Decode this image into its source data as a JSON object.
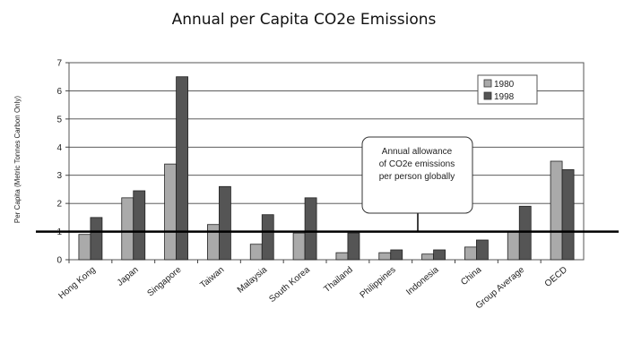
{
  "chart_data": {
    "type": "bar",
    "title": "Annual per Capita CO2e Emissions",
    "ylabel": "Per Capita (Metric Tonnes Carbon Only)",
    "xlabel": "",
    "ylim": [
      0,
      7
    ],
    "yticks": [
      "0",
      "1",
      "2",
      "3",
      "4",
      "5",
      "6",
      "7"
    ],
    "grid": true,
    "legend_position": "top-right",
    "categories": [
      "Hong Kong",
      "Japan",
      "Singapore",
      "Taiwan",
      "Malaysia",
      "South Korea",
      "Thailand",
      "Philippines",
      "Indonesia",
      "China",
      "Group Average",
      "OECD"
    ],
    "series": [
      {
        "name": "1980",
        "color": "#aaaaaa",
        "values": [
          0.9,
          2.2,
          3.4,
          1.25,
          0.55,
          0.95,
          0.25,
          0.25,
          0.2,
          0.45,
          1.0,
          3.5
        ]
      },
      {
        "name": "1998",
        "color": "#555555",
        "values": [
          1.5,
          2.45,
          6.5,
          2.6,
          1.6,
          2.2,
          0.95,
          0.35,
          0.35,
          0.7,
          1.9,
          3.2
        ]
      }
    ],
    "reference_line": {
      "value": 1.0
    },
    "annotation": [
      "Annual allowance",
      "of CO2e emissions",
      "per person globally"
    ]
  }
}
